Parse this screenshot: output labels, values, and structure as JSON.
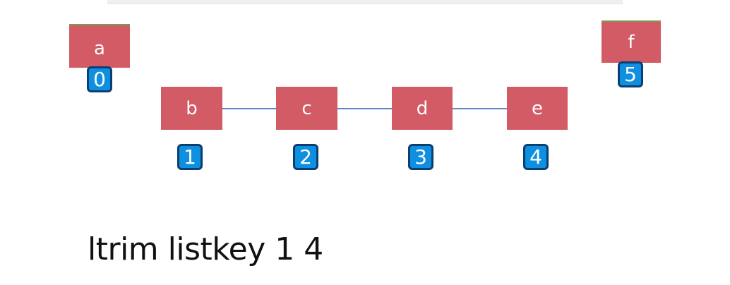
{
  "nodes": {
    "a": {
      "label": "a",
      "index": "0"
    },
    "b": {
      "label": "b",
      "index": "1"
    },
    "c": {
      "label": "c",
      "index": "2"
    },
    "d": {
      "label": "d",
      "index": "3"
    },
    "e": {
      "label": "e",
      "index": "4"
    },
    "f": {
      "label": "f",
      "index": "5"
    }
  },
  "command": "ltrim listkey 1 4",
  "colors": {
    "node_fill": "#d35b66",
    "link": "#5b86c4",
    "index_badge": "#0f8fe0",
    "index_border": "#0b3f72"
  }
}
